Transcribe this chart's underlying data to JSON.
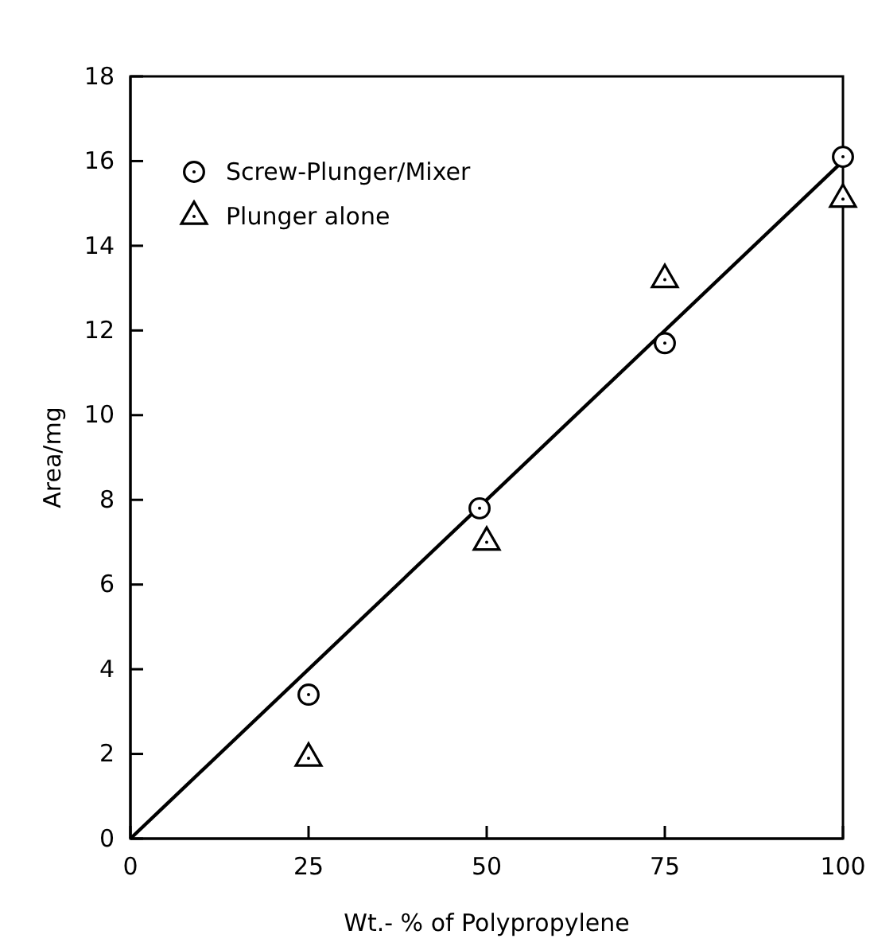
{
  "chart_data": {
    "type": "scatter",
    "xlabel": "Wt.- % of Polypropylene",
    "ylabel": "Area/mg",
    "xlim": [
      0,
      100
    ],
    "ylim": [
      0,
      18
    ],
    "xticks": [
      0,
      25,
      50,
      75,
      100
    ],
    "yticks": [
      0,
      2,
      4,
      6,
      8,
      10,
      12,
      14,
      16,
      18
    ],
    "grid": false,
    "legend": "top left",
    "series": [
      {
        "name": "Screw-Plunger/Mixer",
        "color": "#000000",
        "marker": "circle",
        "x": [
          25,
          49,
          75,
          100
        ],
        "values": [
          3.4,
          7.8,
          11.7,
          16.1
        ]
      },
      {
        "name": "Plunger alone",
        "color": "#000000",
        "marker": "triangle",
        "x": [
          25,
          50,
          75,
          100
        ],
        "values": [
          1.9,
          7.0,
          13.2,
          15.1
        ]
      },
      {
        "type": "line",
        "color": "#000000",
        "marker": "none",
        "line_style": "solid",
        "x": [
          0,
          100
        ],
        "values": [
          0,
          16
        ]
      }
    ]
  }
}
